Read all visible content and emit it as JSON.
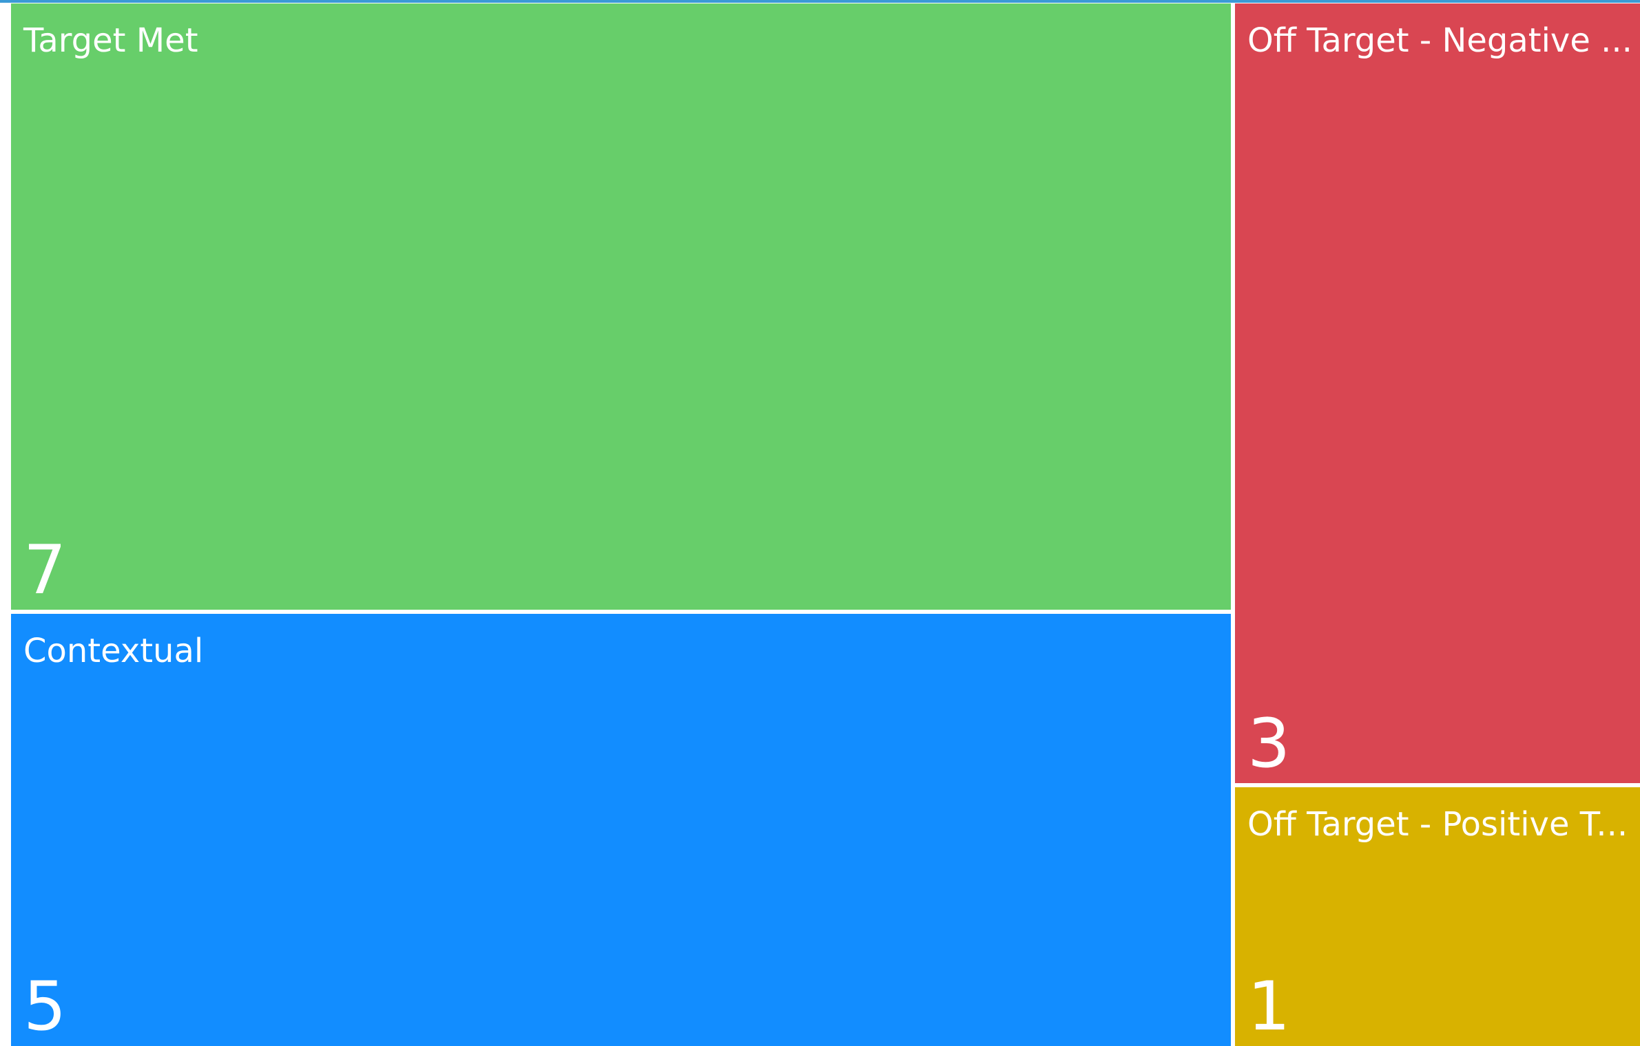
{
  "chart_data": {
    "type": "treemap",
    "title": "",
    "items": [
      {
        "label": "Target Met",
        "value": 7,
        "display_value": "7",
        "color": "#67ce6a"
      },
      {
        "label": "Contextual",
        "value": 5,
        "display_value": "5",
        "color": "#128dff"
      },
      {
        "label": "Off Target - Negative ...",
        "value": 3,
        "display_value": "3",
        "color": "#d94652"
      },
      {
        "label": "Off Target - Positive T...",
        "value": 1,
        "display_value": "1",
        "color": "#d8b200"
      }
    ]
  },
  "colors": {
    "background": "#ffffff",
    "top_accent": "#3b9ad6",
    "label": "#ffffff"
  }
}
